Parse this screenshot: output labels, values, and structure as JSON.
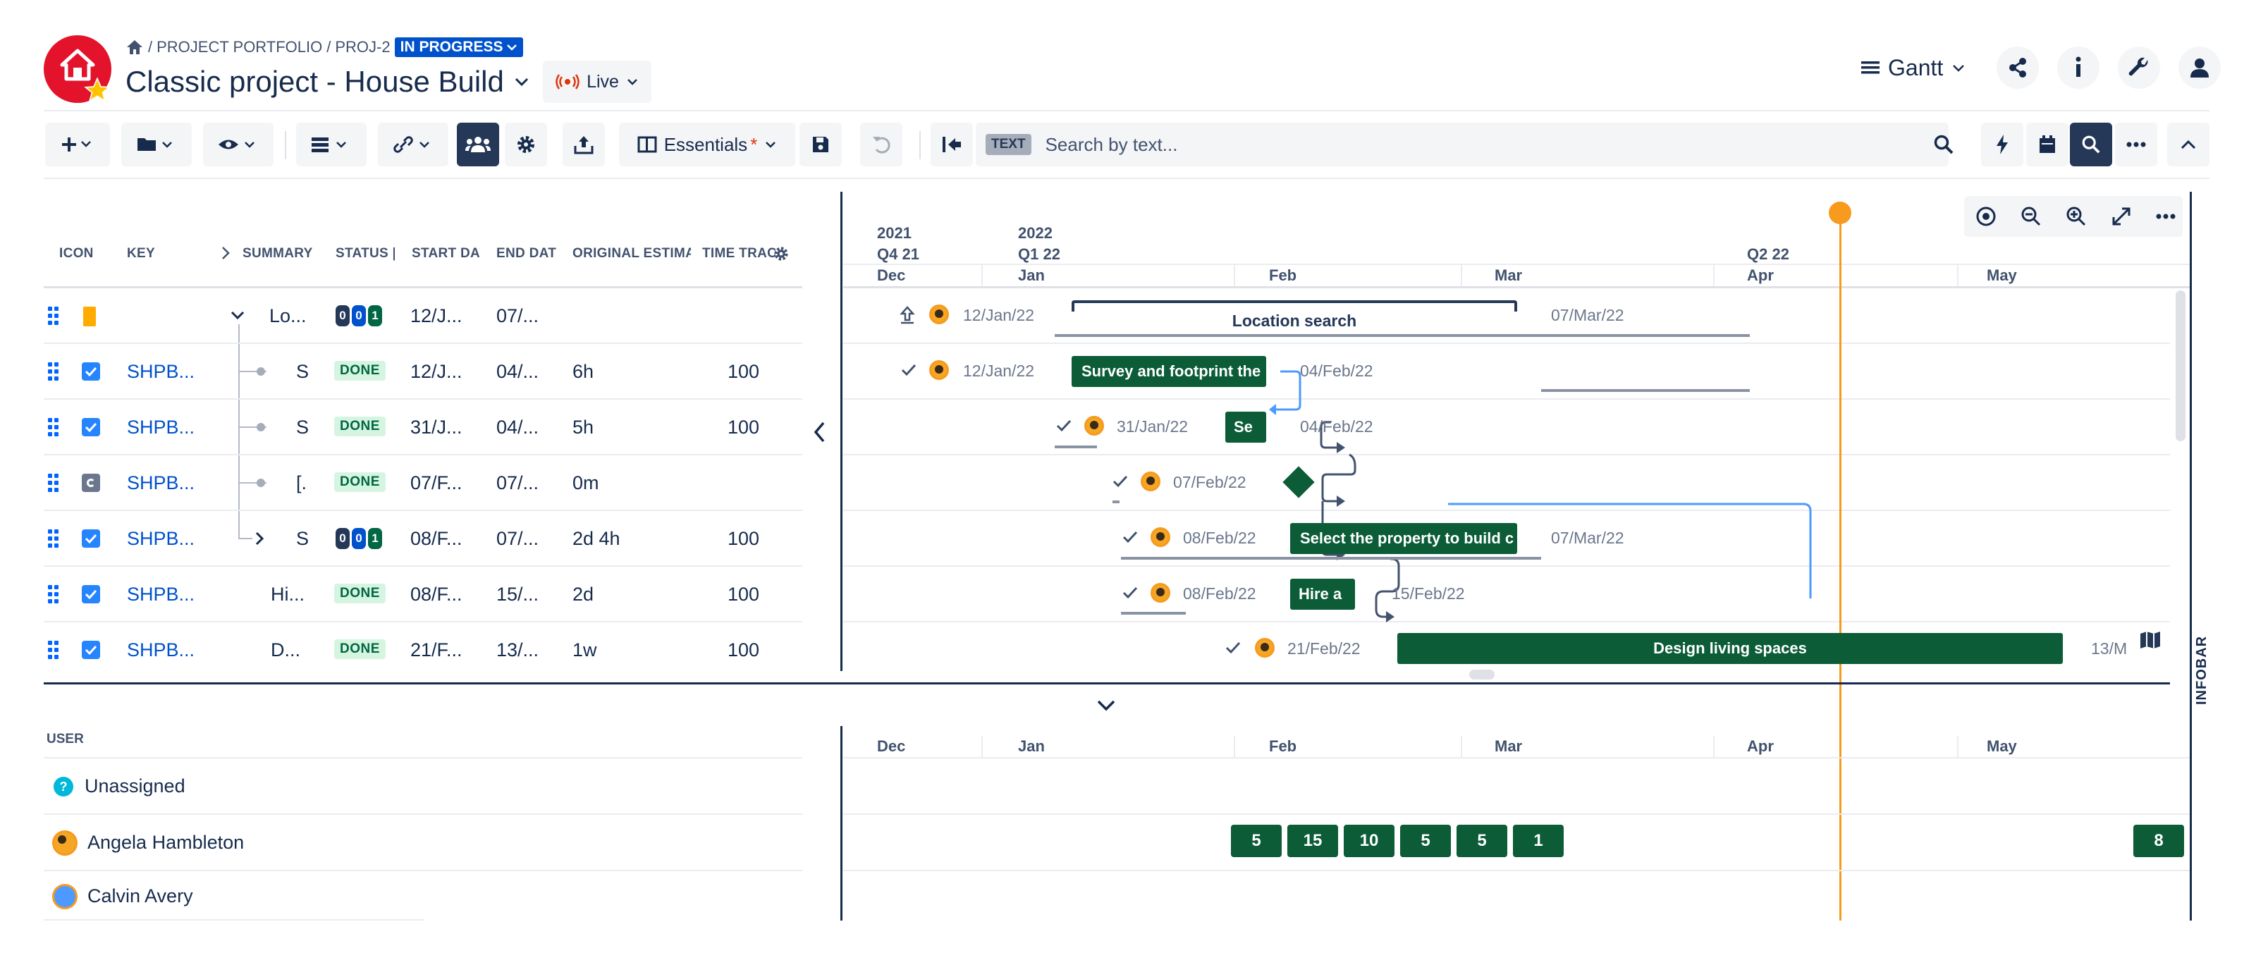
{
  "breadcrumb": {
    "root": "PROJECT PORTFOLIO",
    "project": "PROJ-2",
    "status": "IN PROGRESS"
  },
  "title": "Classic project - House Build",
  "live_label": "Live",
  "view_selector": "Gantt",
  "toolbar": {
    "view_name": "Essentials",
    "view_modified": "*",
    "search_tag": "TEXT",
    "search_placeholder": "Search by text..."
  },
  "columns": [
    "ICON",
    "KEY",
    "SUMMARY",
    "STATUS |",
    "START DAT",
    "END DATI",
    "ORIGINAL ESTIMA",
    "TIME TRAC"
  ],
  "rows": [
    {
      "key": "",
      "summary": "Lo...",
      "status": "pills",
      "start": "12/J...",
      "end": "07/...",
      "estimate": "",
      "time": ""
    },
    {
      "key": "SHPB...",
      "summary": "S",
      "status": "DONE",
      "start": "12/J...",
      "end": "04/...",
      "estimate": "6h",
      "time": "100"
    },
    {
      "key": "SHPB...",
      "summary": "S",
      "status": "DONE",
      "start": "31/J...",
      "end": "04/...",
      "estimate": "5h",
      "time": "100"
    },
    {
      "key": "SHPB...",
      "summary": "[.",
      "status": "DONE",
      "start": "07/F...",
      "end": "07/...",
      "estimate": "0m",
      "time": ""
    },
    {
      "key": "SHPB...",
      "summary": "S",
      "status": "pills",
      "start": "08/F...",
      "end": "07/...",
      "estimate": "2d 4h",
      "time": "100"
    },
    {
      "key": "SHPB...",
      "summary": "Hi...",
      "status": "DONE",
      "start": "08/F...",
      "end": "15/...",
      "estimate": "2d",
      "time": "100"
    },
    {
      "key": "SHPB...",
      "summary": "D...",
      "status": "DONE",
      "start": "21/F...",
      "end": "13/...",
      "estimate": "1w",
      "time": "100"
    }
  ],
  "status_pills": [
    "0",
    "0",
    "1"
  ],
  "timeline": {
    "years": [
      "2021",
      "2022"
    ],
    "quarters": [
      "Q4 21",
      "Q1 22",
      "Q2 22"
    ],
    "months": [
      "Dec",
      "Jan",
      "Feb",
      "Mar",
      "Apr",
      "May"
    ],
    "bars": [
      {
        "label": "Location search",
        "start": "12/Jan/22",
        "end": "07/Mar/22"
      },
      {
        "label": "Survey and footprint the",
        "start": "12/Jan/22",
        "end": "04/Feb/22"
      },
      {
        "label": "Se",
        "start": "31/Jan/22",
        "end": "04/Feb/22"
      },
      {
        "label": "",
        "start": "07/Feb/22",
        "end": ""
      },
      {
        "label": "Select the property to build c",
        "start": "08/Feb/22",
        "end": "07/Mar/22"
      },
      {
        "label": "Hire a",
        "start": "08/Feb/22",
        "end": "15/Feb/22"
      },
      {
        "label": "Design living spaces",
        "start": "21/Feb/22",
        "end": "13/M"
      }
    ]
  },
  "infobar_label": "INFOBAR",
  "resources": {
    "header": "USER",
    "users": [
      "Unassigned",
      "Angela Hambleton",
      "Calvin Avery"
    ],
    "angela_workload": [
      "5",
      "15",
      "10",
      "5",
      "5",
      "1",
      "8"
    ]
  },
  "colors": {
    "accent": "#0b5c37",
    "today": "#f79a1e",
    "link": "#0052cc",
    "selected": "#253858"
  }
}
